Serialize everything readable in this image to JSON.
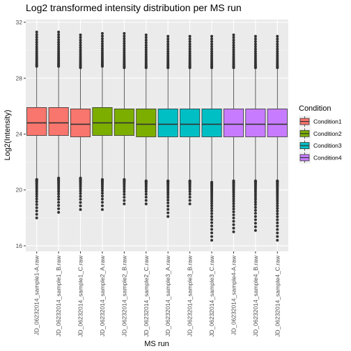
{
  "chart_data": {
    "type": "boxplot",
    "title": "Log2 transformed intensity distribution per MS run",
    "xlabel": "MS run",
    "ylabel": "Log2(Intensity)",
    "ylim": [
      15.6,
      32.2
    ],
    "y_ticks": [
      16,
      20,
      24,
      28,
      32
    ],
    "grid": true,
    "legend_position": "right",
    "legend": {
      "title": "Condition",
      "items": [
        {
          "name": "Condition1",
          "color": "#F8766D"
        },
        {
          "name": "Condition2",
          "color": "#7CAE00"
        },
        {
          "name": "Condition3",
          "color": "#00BFC4"
        },
        {
          "name": "Condition4",
          "color": "#C77CFF"
        }
      ]
    },
    "categories": [
      "JD_06232014_sample1-A.raw",
      "JD_06232014_sample1_B.raw",
      "JD_06232014_sample1_C.raw",
      "JD_06232014_sample2_A.raw",
      "JD_06232014_sample2_B.raw",
      "JD_06232014_sample2_C.raw",
      "JD_06232014_sample3_A.raw",
      "JD_06232014_sample3_B.raw",
      "JD_06232014_sample3_C.raw",
      "JD_06232014_sample4-A.raw",
      "JD_06232014_sample4_B.raw",
      "JD_06232014_sample4_C.raw"
    ],
    "boxes": [
      {
        "condition": "Condition1",
        "min": 20.8,
        "q1": 23.9,
        "median": 24.8,
        "q3": 25.9,
        "max": 28.8,
        "outlier_min": 18.0,
        "outlier_max": 31.3
      },
      {
        "condition": "Condition1",
        "min": 20.9,
        "q1": 23.9,
        "median": 24.8,
        "q3": 25.9,
        "max": 28.8,
        "outlier_min": 18.4,
        "outlier_max": 31.3
      },
      {
        "condition": "Condition1",
        "min": 20.9,
        "q1": 23.8,
        "median": 24.7,
        "q3": 25.8,
        "max": 28.7,
        "outlier_min": 18.6,
        "outlier_max": 31.1
      },
      {
        "condition": "Condition2",
        "min": 20.8,
        "q1": 23.9,
        "median": 24.8,
        "q3": 25.9,
        "max": 28.8,
        "outlier_min": 18.6,
        "outlier_max": 31.2
      },
      {
        "condition": "Condition2",
        "min": 20.8,
        "q1": 23.9,
        "median": 24.8,
        "q3": 25.8,
        "max": 28.7,
        "outlier_min": 19.0,
        "outlier_max": 31.2
      },
      {
        "condition": "Condition2",
        "min": 20.7,
        "q1": 23.8,
        "median": 24.7,
        "q3": 25.8,
        "max": 28.7,
        "outlier_min": 19.0,
        "outlier_max": 31.1
      },
      {
        "condition": "Condition3",
        "min": 20.7,
        "q1": 23.8,
        "median": 24.7,
        "q3": 25.8,
        "max": 28.7,
        "outlier_min": 18.1,
        "outlier_max": 31.0
      },
      {
        "condition": "Condition3",
        "min": 20.7,
        "q1": 23.8,
        "median": 24.7,
        "q3": 25.8,
        "max": 28.7,
        "outlier_min": 19.0,
        "outlier_max": 31.0
      },
      {
        "condition": "Condition3",
        "min": 20.6,
        "q1": 23.8,
        "median": 24.7,
        "q3": 25.8,
        "max": 28.7,
        "outlier_min": 16.4,
        "outlier_max": 31.0
      },
      {
        "condition": "Condition4",
        "min": 20.7,
        "q1": 23.8,
        "median": 24.7,
        "q3": 25.8,
        "max": 28.7,
        "outlier_min": 17.0,
        "outlier_max": 31.1
      },
      {
        "condition": "Condition4",
        "min": 20.7,
        "q1": 23.8,
        "median": 24.7,
        "q3": 25.8,
        "max": 28.7,
        "outlier_min": 17.1,
        "outlier_max": 31.0
      },
      {
        "condition": "Condition4",
        "min": 20.7,
        "q1": 23.8,
        "median": 24.7,
        "q3": 25.8,
        "max": 28.7,
        "outlier_min": 16.4,
        "outlier_max": 31.0
      }
    ]
  }
}
